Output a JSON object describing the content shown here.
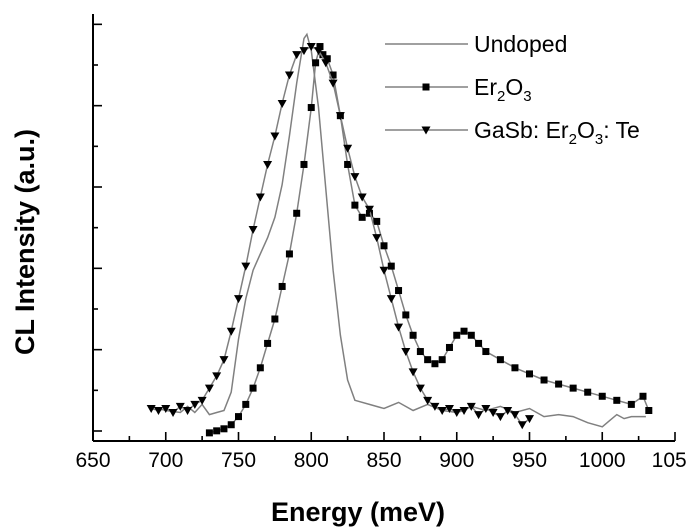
{
  "chart_data": {
    "type": "line",
    "xlabel": "Energy (meV)",
    "ylabel": "CL Intensity (a.u.)",
    "xlim": [
      650,
      1050
    ],
    "ylim": [
      0,
      1.05
    ],
    "xticks": [
      650,
      700,
      750,
      800,
      850,
      900,
      950,
      1000,
      1050
    ],
    "xtick_labels": [
      "650",
      "700",
      "750",
      "800",
      "850",
      "900",
      "950",
      "1000",
      "1050"
    ],
    "y_tick_labels_shown": false,
    "legend_position": "top-right",
    "series": [
      {
        "name": "Undoped",
        "legend_parts": [
          {
            "t": "Undoped"
          }
        ],
        "marker": "none",
        "color": "#808080",
        "points": [
          [
            690,
            0.085
          ],
          [
            700,
            0.075
          ],
          [
            710,
            0.07
          ],
          [
            715,
            0.085
          ],
          [
            720,
            0.07
          ],
          [
            725,
            0.09
          ],
          [
            730,
            0.065
          ],
          [
            735,
            0.07
          ],
          [
            740,
            0.075
          ],
          [
            745,
            0.12
          ],
          [
            750,
            0.25
          ],
          [
            755,
            0.35
          ],
          [
            760,
            0.42
          ],
          [
            765,
            0.46
          ],
          [
            770,
            0.5
          ],
          [
            775,
            0.55
          ],
          [
            780,
            0.63
          ],
          [
            785,
            0.75
          ],
          [
            790,
            0.88
          ],
          [
            795,
            0.99
          ],
          [
            797,
            1.0
          ],
          [
            800,
            0.96
          ],
          [
            805,
            0.82
          ],
          [
            810,
            0.62
          ],
          [
            815,
            0.42
          ],
          [
            820,
            0.26
          ],
          [
            825,
            0.15
          ],
          [
            830,
            0.1
          ],
          [
            840,
            0.09
          ],
          [
            850,
            0.08
          ],
          [
            860,
            0.095
          ],
          [
            870,
            0.075
          ],
          [
            880,
            0.09
          ],
          [
            890,
            0.075
          ],
          [
            900,
            0.07
          ],
          [
            910,
            0.085
          ],
          [
            920,
            0.075
          ],
          [
            930,
            0.085
          ],
          [
            940,
            0.07
          ],
          [
            950,
            0.08
          ],
          [
            960,
            0.06
          ],
          [
            970,
            0.065
          ],
          [
            980,
            0.06
          ],
          [
            990,
            0.045
          ],
          [
            1000,
            0.035
          ],
          [
            1005,
            0.05
          ],
          [
            1010,
            0.065
          ],
          [
            1015,
            0.055
          ],
          [
            1020,
            0.06
          ],
          [
            1030,
            0.06
          ]
        ]
      },
      {
        "name": "Er2O3",
        "legend_parts": [
          {
            "t": "Er"
          },
          {
            "t": "2",
            "sub": true
          },
          {
            "t": "O"
          },
          {
            "t": "3",
            "sub": true
          }
        ],
        "marker": "square",
        "color": "#808080",
        "points": [
          [
            730,
            0.02
          ],
          [
            735,
            0.025
          ],
          [
            740,
            0.03
          ],
          [
            745,
            0.04
          ],
          [
            750,
            0.06
          ],
          [
            755,
            0.09
          ],
          [
            760,
            0.13
          ],
          [
            765,
            0.18
          ],
          [
            770,
            0.24
          ],
          [
            775,
            0.3
          ],
          [
            780,
            0.38
          ],
          [
            785,
            0.46
          ],
          [
            790,
            0.56
          ],
          [
            795,
            0.68
          ],
          [
            800,
            0.82
          ],
          [
            803,
            0.93
          ],
          [
            806,
            0.97
          ],
          [
            808,
            0.95
          ],
          [
            811,
            0.94
          ],
          [
            815,
            0.9
          ],
          [
            820,
            0.8
          ],
          [
            825,
            0.68
          ],
          [
            830,
            0.58
          ],
          [
            835,
            0.55
          ],
          [
            840,
            0.56
          ],
          [
            845,
            0.54
          ],
          [
            850,
            0.48
          ],
          [
            855,
            0.43
          ],
          [
            860,
            0.37
          ],
          [
            865,
            0.31
          ],
          [
            870,
            0.26
          ],
          [
            875,
            0.22
          ],
          [
            880,
            0.2
          ],
          [
            885,
            0.19
          ],
          [
            890,
            0.2
          ],
          [
            895,
            0.23
          ],
          [
            900,
            0.26
          ],
          [
            905,
            0.27
          ],
          [
            910,
            0.26
          ],
          [
            915,
            0.24
          ],
          [
            920,
            0.22
          ],
          [
            930,
            0.2
          ],
          [
            940,
            0.18
          ],
          [
            950,
            0.165
          ],
          [
            960,
            0.15
          ],
          [
            970,
            0.14
          ],
          [
            980,
            0.13
          ],
          [
            990,
            0.12
          ],
          [
            1000,
            0.11
          ],
          [
            1010,
            0.1
          ],
          [
            1020,
            0.09
          ],
          [
            1028,
            0.11
          ],
          [
            1032,
            0.075
          ]
        ]
      },
      {
        "name": "GaSb: Er2O3: Te",
        "legend_parts": [
          {
            "t": "GaSb: Er"
          },
          {
            "t": "2",
            "sub": true
          },
          {
            "t": "O"
          },
          {
            "t": "3",
            "sub": true
          },
          {
            "t": ": Te"
          }
        ],
        "marker": "triangle-down",
        "color": "#808080",
        "points": [
          [
            690,
            0.08
          ],
          [
            695,
            0.075
          ],
          [
            700,
            0.08
          ],
          [
            705,
            0.07
          ],
          [
            710,
            0.085
          ],
          [
            715,
            0.075
          ],
          [
            720,
            0.09
          ],
          [
            725,
            0.1
          ],
          [
            730,
            0.13
          ],
          [
            735,
            0.16
          ],
          [
            740,
            0.2
          ],
          [
            745,
            0.27
          ],
          [
            750,
            0.35
          ],
          [
            755,
            0.43
          ],
          [
            760,
            0.52
          ],
          [
            765,
            0.6
          ],
          [
            770,
            0.68
          ],
          [
            775,
            0.75
          ],
          [
            780,
            0.83
          ],
          [
            785,
            0.9
          ],
          [
            790,
            0.95
          ],
          [
            795,
            0.96
          ],
          [
            800,
            0.97
          ],
          [
            805,
            0.96
          ],
          [
            810,
            0.93
          ],
          [
            815,
            0.88
          ],
          [
            820,
            0.8
          ],
          [
            825,
            0.72
          ],
          [
            830,
            0.65
          ],
          [
            835,
            0.6
          ],
          [
            840,
            0.57
          ],
          [
            845,
            0.5
          ],
          [
            850,
            0.42
          ],
          [
            855,
            0.35
          ],
          [
            860,
            0.28
          ],
          [
            865,
            0.22
          ],
          [
            870,
            0.17
          ],
          [
            875,
            0.13
          ],
          [
            880,
            0.1
          ],
          [
            885,
            0.085
          ],
          [
            890,
            0.075
          ],
          [
            895,
            0.08
          ],
          [
            900,
            0.07
          ],
          [
            905,
            0.075
          ],
          [
            910,
            0.085
          ],
          [
            915,
            0.065
          ],
          [
            920,
            0.08
          ],
          [
            925,
            0.07
          ],
          [
            930,
            0.06
          ],
          [
            935,
            0.075
          ],
          [
            940,
            0.065
          ],
          [
            945,
            0.04
          ],
          [
            950,
            0.055
          ]
        ]
      }
    ]
  }
}
